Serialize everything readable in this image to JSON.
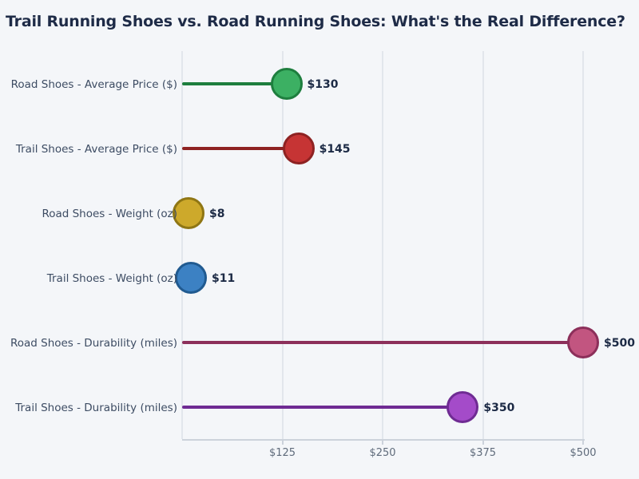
{
  "title": "Trail Running Shoes vs. Road Running Shoes: What's the Real Difference?",
  "chart_data": {
    "type": "bar",
    "variant": "horizontal-lollipop",
    "title": "Trail Running Shoes vs. Road Running Shoes: What's the Real Difference?",
    "categories": [
      "Road Shoes - Average Price ($)",
      "Trail Shoes - Average Price ($)",
      "Road Shoes - Weight (oz)",
      "Trail Shoes - Weight (oz)",
      "Road Shoes - Durability (miles)",
      "Trail Shoes - Durability (miles)"
    ],
    "values": [
      130,
      145,
      8,
      11,
      500,
      350
    ],
    "value_labels": [
      "$130",
      "$145",
      "$8",
      "$11",
      "$500",
      "$350"
    ],
    "point_colors": [
      {
        "fill": "#3cb063",
        "stroke": "#1e7e3e"
      },
      {
        "fill": "#c63434",
        "stroke": "#8e2222"
      },
      {
        "fill": "#cda92b",
        "stroke": "#8f7614"
      },
      {
        "fill": "#3c81c3",
        "stroke": "#205a90"
      },
      {
        "fill": "#c25580",
        "stroke": "#8c2f5a"
      },
      {
        "fill": "#a44bc9",
        "stroke": "#6f2b93"
      }
    ],
    "xlabel": "",
    "ylabel": "",
    "xlim": [
      0,
      500
    ],
    "x_tick_values": [
      125,
      250,
      375,
      500
    ],
    "x_tick_labels": [
      "$125",
      "$250",
      "$375",
      "$500"
    ],
    "gridline_values": [
      0,
      125,
      250,
      375,
      500
    ],
    "grid": true,
    "legend": false,
    "orientation": "horizontal",
    "background_color": "#f4f6f9",
    "gridline_color": "#e2e6ec",
    "axis_line_color": "#ccd2db",
    "title_color": "#1e2b47",
    "category_label_color": "#3d4c63",
    "value_label_color": "#1c2a45",
    "tick_label_color": "#5f6b7b"
  }
}
